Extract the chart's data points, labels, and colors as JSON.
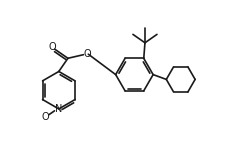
{
  "bg_color": "#ffffff",
  "line_color": "#1a1a1a",
  "lw": 1.2,
  "figsize": [
    2.4,
    1.66
  ],
  "dpi": 100,
  "xlim": [
    0,
    10
  ],
  "ylim": [
    0,
    6.9
  ]
}
